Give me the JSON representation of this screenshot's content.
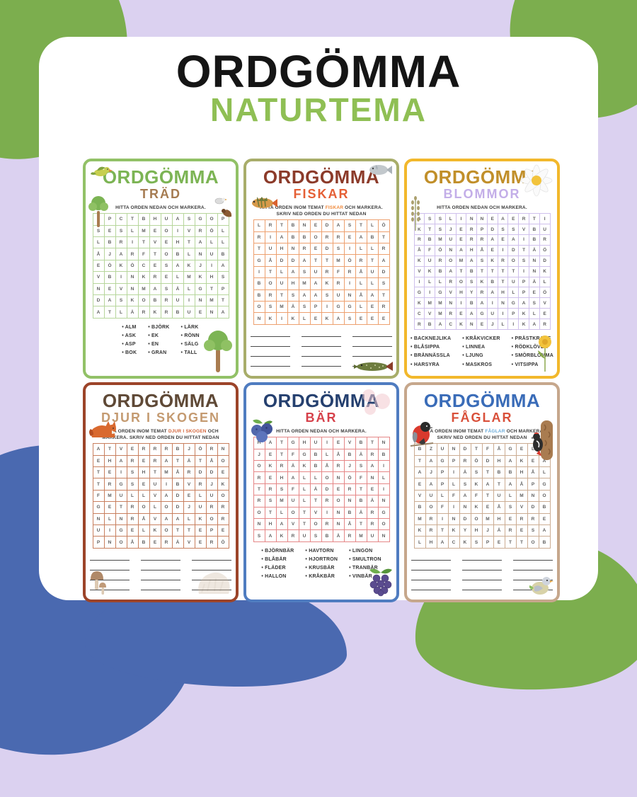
{
  "page": {
    "title": "ORDGÖMMA",
    "subtitle": "NATURTEMA",
    "colors": {
      "background": "#dbd1f0",
      "blob_green": "#7cae4e",
      "blob_blue": "#4a69b0",
      "title": "#151515",
      "subtitle": "#8fbf54"
    }
  },
  "puzzles": [
    {
      "id": "trad",
      "title": "ORDGÖMMA",
      "subtitle": "TRÄD",
      "instruction_lines": [
        [
          {
            "t": "HITTA ORDEN NEDAN OCH MARKERA."
          }
        ]
      ],
      "colors": {
        "border": "#92c167",
        "title": "#7cb454",
        "subtitle": "#a57b51",
        "grid": "#b7d69c",
        "highlight": "#7cb454"
      },
      "grid": {
        "cols": 12,
        "rows": [
          "LPCTBHUASGOP",
          "SESLMEOIVRÖL",
          "LBRITVEHTALL",
          "ÅJARFTOBLNUB",
          "EÖKÖCESAKJIA",
          "VBINKRELMKHS",
          "NEVNMASÄLGTP",
          "DASKOBRUINMT",
          "ATLÄRKRBUENA"
        ]
      },
      "words": [
        [
          "ALM",
          "ASK",
          "ASP",
          "BOK"
        ],
        [
          "BJÖRK",
          "EK",
          "EN",
          "GRAN"
        ],
        [
          "LÄRK",
          "RÖNN",
          "SÄLG",
          "TALL"
        ]
      ],
      "blank_rows": 0,
      "decorations": [
        {
          "icon": "flying-bird-icon",
          "pos": "tl"
        },
        {
          "icon": "tree-icon",
          "pos": "l"
        },
        {
          "icon": "perched-birds-icon",
          "pos": "r"
        },
        {
          "icon": "big-tree-icon",
          "pos": "br"
        }
      ]
    },
    {
      "id": "fiskar",
      "title": "ORDGÖMMA",
      "subtitle": "FISKAR",
      "instruction_lines": [
        [
          {
            "t": "HITTA ORDEN INOM TEMAT "
          },
          {
            "t": "FISKAR",
            "h": true
          },
          {
            "t": " OCH MARKERA."
          }
        ],
        [
          {
            "t": "SKRIV NED ORDEN DU HITTAT NEDAN"
          }
        ]
      ],
      "colors": {
        "border": "#a8ad6a",
        "title": "#8c3b2a",
        "subtitle": "#e55f35",
        "grid": "#eda06f",
        "highlight": "#f08a3c"
      },
      "grid": {
        "cols": 12,
        "rows": [
          "LRTBNEDASTLÖ",
          "RIABBORREABT",
          "TUHNREDSILLR",
          "GÅDDATTMÖRTA",
          "ITLASURFRÅUD",
          "BOUHMAKRILLS",
          "BRTSAASUNÅAT",
          "OSMÄSPIGGLER",
          "NKIKLEKASEEE"
        ]
      },
      "words": null,
      "blank_rows": 4,
      "decorations": [
        {
          "icon": "silver-fish-icon",
          "pos": "tr"
        },
        {
          "icon": "perch-fish-icon",
          "pos": "l"
        },
        {
          "icon": "pike-fish-icon",
          "pos": "br"
        }
      ]
    },
    {
      "id": "blommor",
      "title": "ORDGÖMMA",
      "subtitle": "BLOMMOR",
      "instruction_lines": [
        [
          {
            "t": "HITTA ORDEN NEDAN OCH MARKERA."
          }
        ]
      ],
      "colors": {
        "border": "#f2b82c",
        "title": "#c18f2a",
        "subtitle": "#c3aee8",
        "grid": "#cfc0ec",
        "highlight": "#c18f2a"
      },
      "grid": {
        "cols": 13,
        "rows": [
          "ASSLINNEAERTI",
          "KTSJERPDSSVBU",
          "RBMUERRAEAIBR",
          "ÅFÖNAHÅEIDTÄÖ",
          "KUROMASKROSND",
          "VKBATBTTTTINK",
          "ILLROSKBTUPÄL",
          "GIGVHYRAHLPEÖ",
          "KMMNIBAINGASV",
          "CVMREAGUIPKLE",
          "RBACKNEJLIKAR"
        ]
      },
      "words": [
        [
          "BACKNEJLIKA",
          "BLÅSIPPA",
          "BRÄNNÄSSLA",
          "HARSYRA"
        ],
        [
          "KRÅKVICKER",
          "LINNEA",
          "LJUNG",
          "MASKROS"
        ],
        [
          "PRÄSTKRAGE",
          "RÖDKLÖVER",
          "SMÖRBLOMMA",
          "VITSIPPA"
        ]
      ],
      "blank_rows": 0,
      "decorations": [
        {
          "icon": "daisy-icon",
          "pos": "tr"
        },
        {
          "icon": "lavender-icon",
          "pos": "l"
        },
        {
          "icon": "dandelion-icon",
          "pos": "br"
        }
      ]
    },
    {
      "id": "djur-i-skogen",
      "title": "ORDGÖMMA",
      "subtitle": "DJUR I SKOGEN",
      "instruction_lines": [
        [
          {
            "t": "HITTA ORDEN INOM TEMAT "
          },
          {
            "t": "DJUR I SKOGEN",
            "h": true
          },
          {
            "t": " OCH"
          }
        ],
        [
          {
            "t": "MARKERA. SKRIV NED ORDEN DU HITTAT NEDAN"
          }
        ]
      ],
      "colors": {
        "border": "#9c4429",
        "title": "#5f4936",
        "subtitle": "#c49a70",
        "grid": "#c87f5e",
        "highlight": "#d4663c"
      },
      "grid": {
        "cols": 12,
        "rows": [
          "ATVERRRBJÖRN",
          "EHARERATÄTÅO",
          "TEISHTMÅRDDE",
          "TRGSEUIBVRJK",
          "FMULLVADELUO",
          "GETROLODJURR",
          "NLNRÅVAALKOR",
          "UIGELKOTTEPE",
          "PNOÅBERÄVERÖ"
        ]
      },
      "words": null,
      "blank_rows": 5,
      "decorations": [
        {
          "icon": "fox-icon",
          "pos": "l"
        },
        {
          "icon": "mushroom-icon",
          "pos": "bl"
        },
        {
          "icon": "hedgehog-icon",
          "pos": "br"
        }
      ]
    },
    {
      "id": "bar",
      "title": "ORDGÖMMA",
      "subtitle": "BÄR",
      "instruction_lines": [
        [
          {
            "t": "HITTA ORDEN NEDAN OCH MARKERA."
          }
        ]
      ],
      "colors": {
        "border": "#4f7cc0",
        "title": "#25406f",
        "subtitle": "#d6404a",
        "grid": "#e58787",
        "highlight": "#d6404a"
      },
      "grid": {
        "cols": 12,
        "rows": [
          "HATGHUIEVBTN",
          "JETFGBLÅBÄRB",
          "OKRÄKBÅRJSAI",
          "REHALLONÖFNL",
          "TRSFLÄDERTEI",
          "RSMULTRONBÄN",
          "OTLOTVINBÄRG",
          "NHAVTORNÅTRO",
          "SAKRUSBÄRMUN"
        ]
      },
      "words": [
        [
          "BJÖRNBÄR",
          "BLÅBÄR",
          "FLÄDER",
          "HALLON"
        ],
        [
          "HAVTORN",
          "HJORTRON",
          "KRUSBÄR",
          "KRÅKBÄR"
        ],
        [
          "LINGON",
          "SMULTRON",
          "TRANBÄR",
          "VINBÄR"
        ]
      ],
      "blank_rows": 0,
      "decorations": [
        {
          "icon": "raspberry-icon",
          "pos": "tr"
        },
        {
          "icon": "blueberries-icon",
          "pos": "l"
        },
        {
          "icon": "blackberry-icon",
          "pos": "br"
        }
      ]
    },
    {
      "id": "faglar",
      "title": "ORDGÖMMA",
      "subtitle": "FÅGLAR",
      "instruction_lines": [
        [
          {
            "t": "HITTA ORDEN INOM TEMAT "
          },
          {
            "t": "FÅGLAR",
            "h": true
          },
          {
            "t": " OCH MARKERA."
          }
        ],
        [
          {
            "t": "SKRIV NED ORDEN DU HITTAT NEDAN"
          }
        ]
      ],
      "colors": {
        "border": "#c6a78c",
        "title": "#3a6cb8",
        "subtitle": "#d9503a",
        "grid": "#cbac92",
        "highlight": "#6aaad8"
      },
      "grid": {
        "cols": 12,
        "rows": [
          "BZUNDTFÅGELT",
          "TAGPRÖDHAKEA",
          "AJPIÄSTBBHÅL",
          "EAPLSKATAÅPG",
          "VULFAFTULMNO",
          "BOFINKEÅSVDB",
          "MRINDOMHERRE",
          "KRTKYHJÄRESA",
          "LHACKSPETTOB"
        ]
      },
      "words": null,
      "blank_rows": 4,
      "decorations": [
        {
          "icon": "bullfinch-icon",
          "pos": "l"
        },
        {
          "icon": "woodpecker-icon",
          "pos": "r"
        },
        {
          "icon": "small-bird-icon",
          "pos": "br"
        }
      ]
    }
  ]
}
